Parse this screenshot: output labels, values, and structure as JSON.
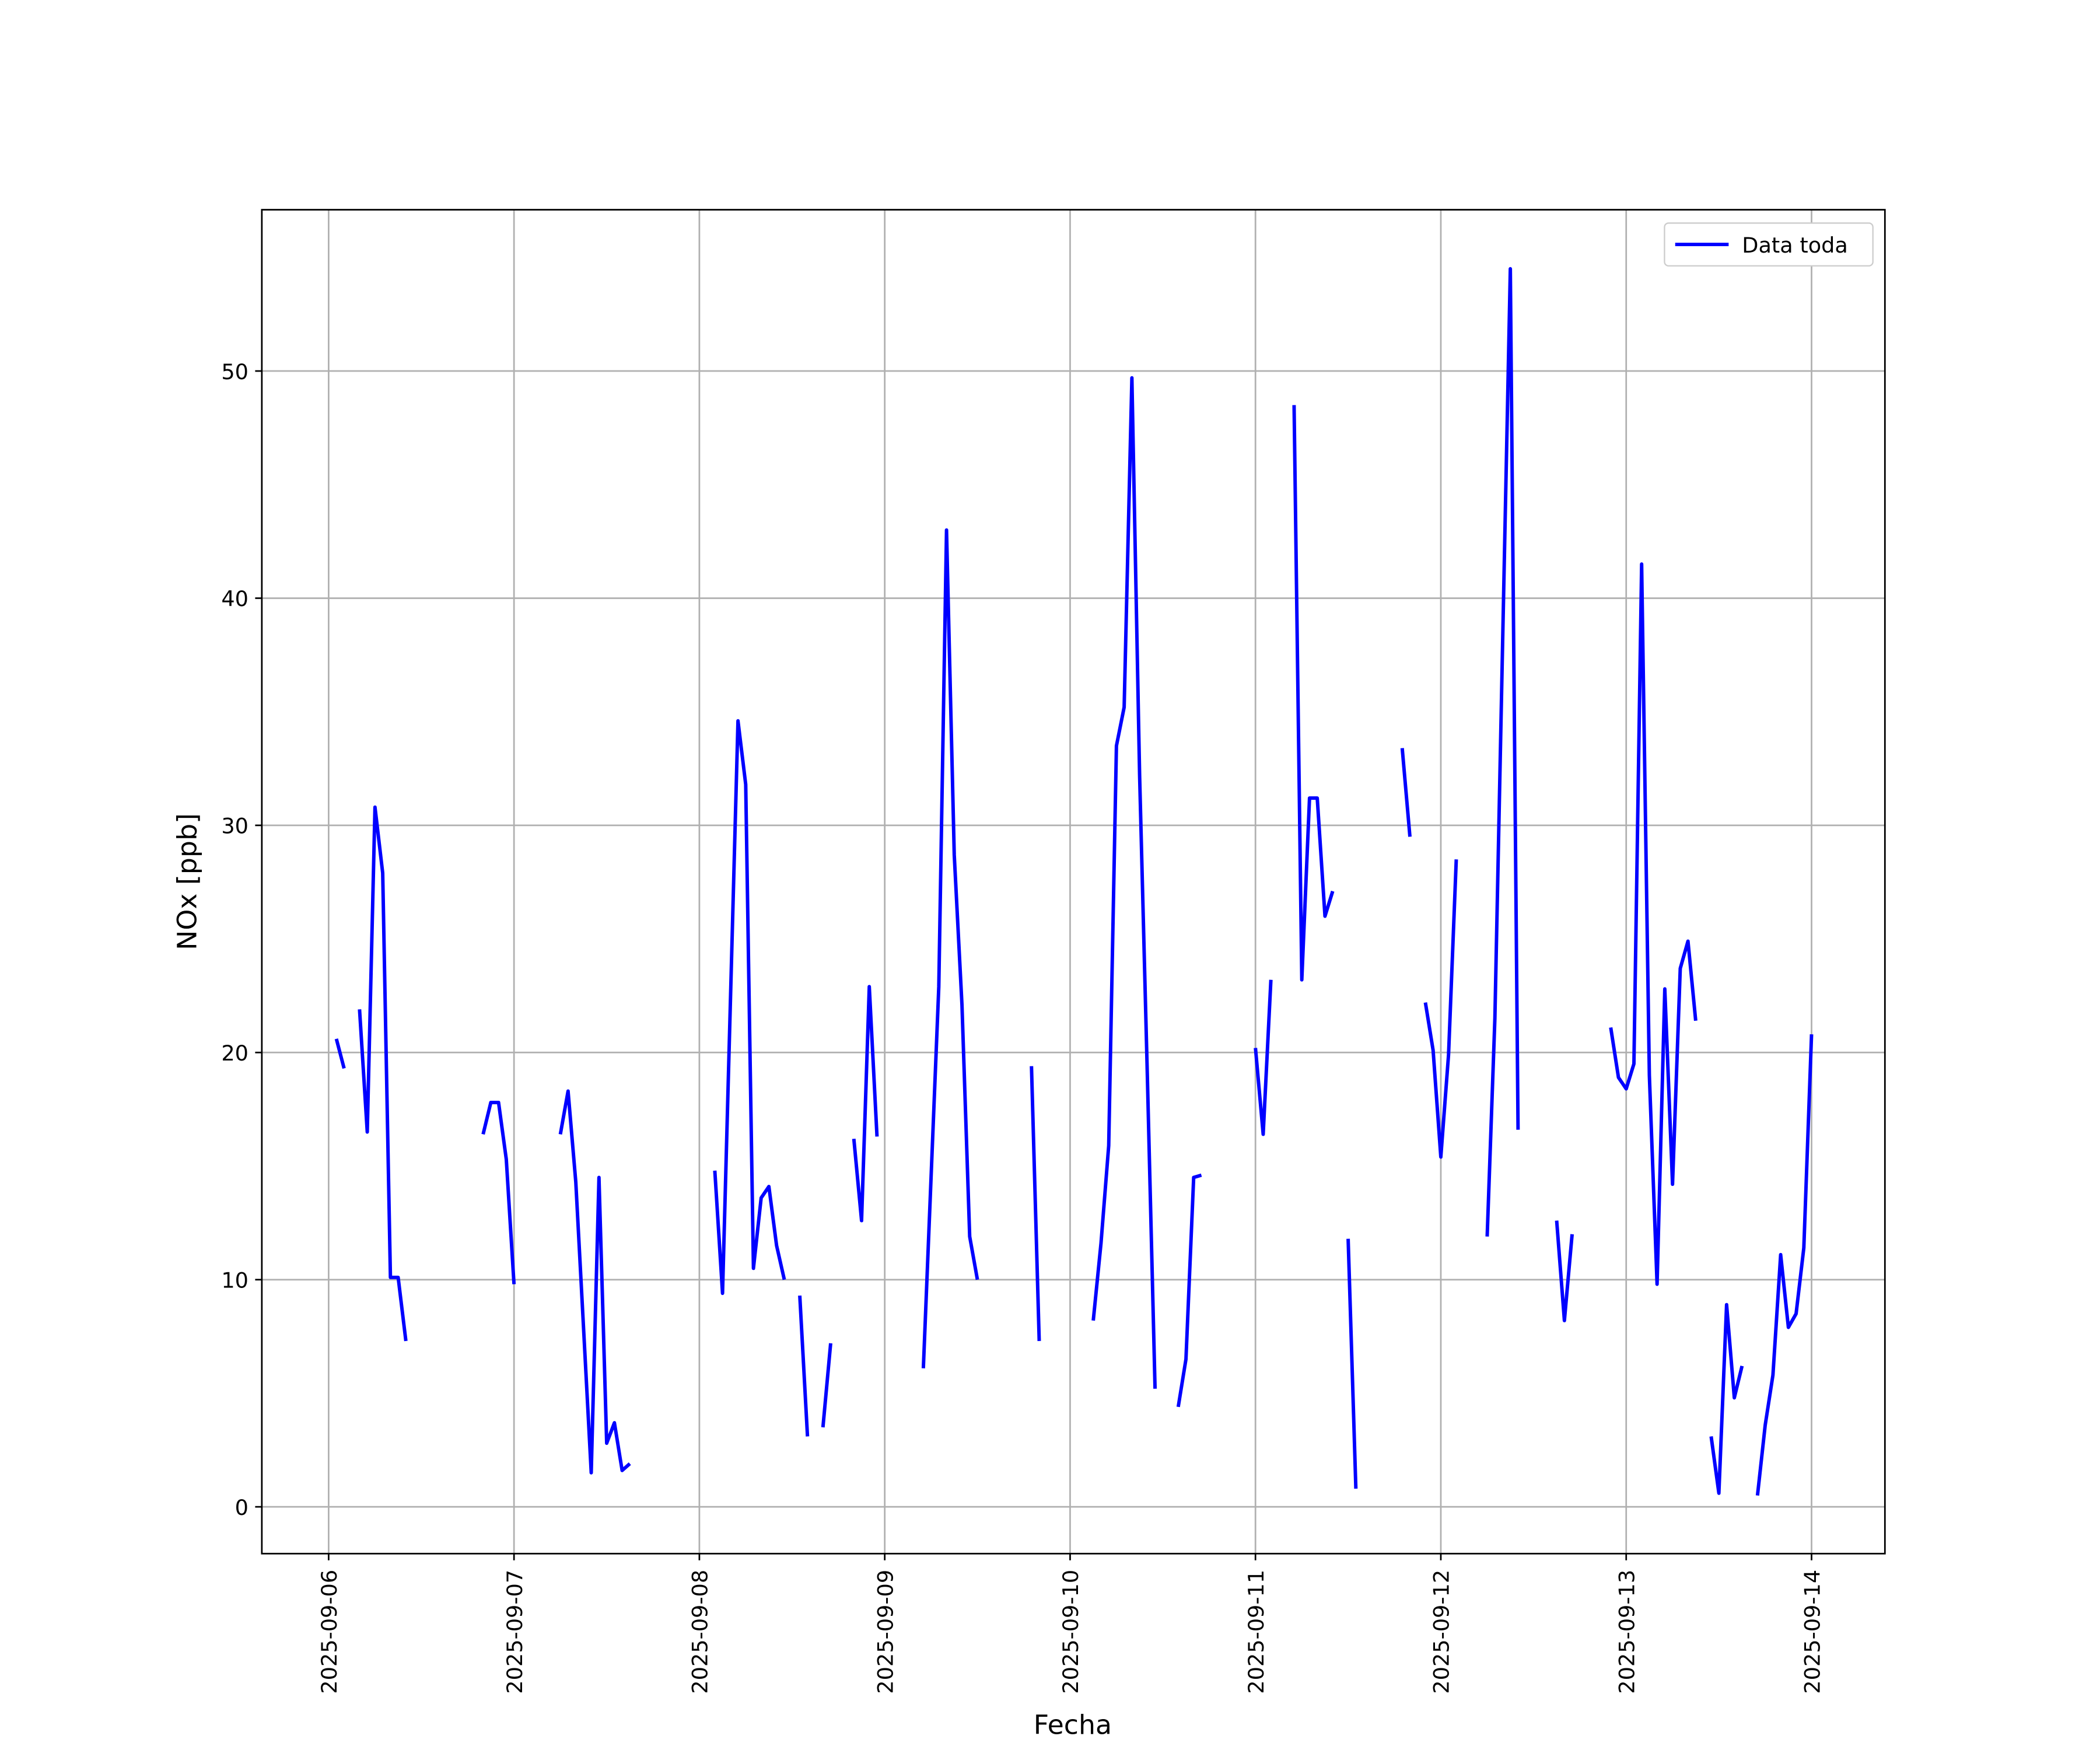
{
  "chart_data": {
    "type": "line",
    "xlabel": "Fecha",
    "ylabel": "NOx [ppb]",
    "x": [
      "2025-09-06 01:00",
      "2025-09-06 02:00",
      "2025-09-06 03:00",
      "2025-09-06 04:00",
      "2025-09-06 05:00",
      "2025-09-06 06:00",
      "2025-09-06 07:00",
      "2025-09-06 08:00",
      "2025-09-06 09:00",
      "2025-09-06 10:00",
      "2025-09-06 11:00",
      "2025-09-06 20:00",
      "2025-09-06 21:00",
      "2025-09-06 22:00",
      "2025-09-06 23:00",
      "2025-09-07 00:00",
      "2025-09-07 01:00",
      "2025-09-07 06:00",
      "2025-09-07 07:00",
      "2025-09-07 08:00",
      "2025-09-07 09:00",
      "2025-09-07 10:00",
      "2025-09-07 11:00",
      "2025-09-07 12:00",
      "2025-09-07 13:00",
      "2025-09-07 14:00",
      "2025-09-07 15:00",
      "2025-09-07 16:00",
      "2025-09-08 02:00",
      "2025-09-08 03:00",
      "2025-09-08 04:00",
      "2025-09-08 05:00",
      "2025-09-08 06:00",
      "2025-09-08 07:00",
      "2025-09-08 08:00",
      "2025-09-08 09:00",
      "2025-09-08 10:00",
      "2025-09-08 11:00",
      "2025-09-08 12:00",
      "2025-09-08 13:00",
      "2025-09-08 14:00",
      "2025-09-08 15:00",
      "2025-09-08 16:00",
      "2025-09-08 17:00",
      "2025-09-08 18:00",
      "2025-09-08 20:00",
      "2025-09-08 21:00",
      "2025-09-08 22:00",
      "2025-09-08 23:00",
      "2025-09-09 00:00",
      "2025-09-09 05:00",
      "2025-09-09 06:00",
      "2025-09-09 07:00",
      "2025-09-09 08:00",
      "2025-09-09 09:00",
      "2025-09-09 10:00",
      "2025-09-09 11:00",
      "2025-09-09 12:00",
      "2025-09-09 13:00",
      "2025-09-09 19:00",
      "2025-09-09 20:00",
      "2025-09-09 21:00",
      "2025-09-10 03:00",
      "2025-09-10 04:00",
      "2025-09-10 05:00",
      "2025-09-10 06:00",
      "2025-09-10 07:00",
      "2025-09-10 08:00",
      "2025-09-10 09:00",
      "2025-09-10 10:00",
      "2025-09-10 11:00",
      "2025-09-10 12:00",
      "2025-09-10 14:00",
      "2025-09-10 15:00",
      "2025-09-10 16:00",
      "2025-09-10 17:00",
      "2025-09-10 18:00",
      "2025-09-11 00:00",
      "2025-09-11 01:00",
      "2025-09-11 02:00",
      "2025-09-11 03:00",
      "2025-09-11 05:00",
      "2025-09-11 06:00",
      "2025-09-11 07:00",
      "2025-09-11 08:00",
      "2025-09-11 09:00",
      "2025-09-11 10:00",
      "2025-09-11 11:00",
      "2025-09-11 12:00",
      "2025-09-11 13:00",
      "2025-09-11 14:00",
      "2025-09-11 19:00",
      "2025-09-11 20:00",
      "2025-09-11 21:00",
      "2025-09-11 22:00",
      "2025-09-11 23:00",
      "2025-09-12 00:00",
      "2025-09-12 01:00",
      "2025-09-12 02:00",
      "2025-09-12 03:00",
      "2025-09-12 06:00",
      "2025-09-12 07:00",
      "2025-09-12 08:00",
      "2025-09-12 09:00",
      "2025-09-12 10:00",
      "2025-09-12 11:00",
      "2025-09-12 15:00",
      "2025-09-12 16:00",
      "2025-09-12 17:00",
      "2025-09-12 18:00",
      "2025-09-12 22:00",
      "2025-09-12 23:00",
      "2025-09-13 00:00",
      "2025-09-13 01:00",
      "2025-09-13 02:00",
      "2025-09-13 03:00",
      "2025-09-13 04:00",
      "2025-09-13 05:00",
      "2025-09-13 06:00",
      "2025-09-13 07:00",
      "2025-09-13 08:00",
      "2025-09-13 09:00",
      "2025-09-13 10:00",
      "2025-09-13 11:00",
      "2025-09-13 12:00",
      "2025-09-13 13:00",
      "2025-09-13 14:00",
      "2025-09-13 15:00",
      "2025-09-13 16:00",
      "2025-09-13 17:00",
      "2025-09-13 18:00",
      "2025-09-13 19:00",
      "2025-09-13 20:00",
      "2025-09-13 21:00",
      "2025-09-13 22:00",
      "2025-09-13 23:00",
      "2025-09-14 00:00"
    ],
    "series": [
      {
        "name": "Data toda",
        "color": "#0000ff",
        "values": [
          20.6,
          19.3,
          null,
          21.9,
          16.5,
          30.8,
          27.9,
          10.1,
          10.1,
          7.3,
          null,
          16.4,
          17.8,
          17.8,
          15.3,
          9.8,
          null,
          16.4,
          18.3,
          14.3,
          7.9,
          1.5,
          14.5,
          2.8,
          3.7,
          1.6,
          1.9,
          null,
          14.8,
          9.4,
          22,
          34.6,
          31.8,
          10.5,
          13.6,
          14.1,
          11.5,
          10,
          null,
          9.3,
          3.1,
          null,
          3.5,
          7.2,
          null,
          16.2,
          12.6,
          22.9,
          16.3,
          null,
          6.1,
          14.5,
          22.9,
          43,
          28.7,
          22.1,
          11.9,
          10,
          null,
          19.4,
          7.3,
          null,
          8.2,
          11.6,
          15.9,
          33.5,
          35.2,
          49.7,
          32.2,
          19,
          5.2,
          null,
          4.4,
          6.5,
          14.5,
          14.6,
          null,
          20.2,
          16.4,
          23.2,
          null,
          48.5,
          23.2,
          31.2,
          31.2,
          26,
          27.1,
          null,
          11.8,
          0.8,
          null,
          33.4,
          29.5,
          null,
          22.2,
          20.1,
          15.4,
          19.9,
          28.5,
          null,
          11.9,
          21.5,
          38,
          54.5,
          16.6,
          null,
          12.6,
          8.2,
          12,
          null,
          21.1,
          18.9,
          18.4,
          19.5,
          41.5,
          19,
          9.8,
          22.8,
          14.2,
          23.7,
          24.9,
          21.4,
          null,
          3.1,
          0.6,
          8.9,
          4.8,
          6.2,
          null,
          0.5,
          3.6,
          5.8,
          11.1,
          7.9,
          8.5,
          11.4,
          20.8
        ]
      }
    ],
    "xlim": [
      "2025-09-05 15:21",
      "2025-09-14 09:30"
    ],
    "xticks": [
      "2025-09-06",
      "2025-09-07",
      "2025-09-08",
      "2025-09-09",
      "2025-09-10",
      "2025-09-11",
      "2025-09-12",
      "2025-09-13",
      "2025-09-14"
    ],
    "ylim": [
      -2.06,
      57.1
    ],
    "yticks": [
      0,
      10,
      20,
      30,
      40,
      50
    ],
    "grid": true,
    "legend": "upper right"
  }
}
